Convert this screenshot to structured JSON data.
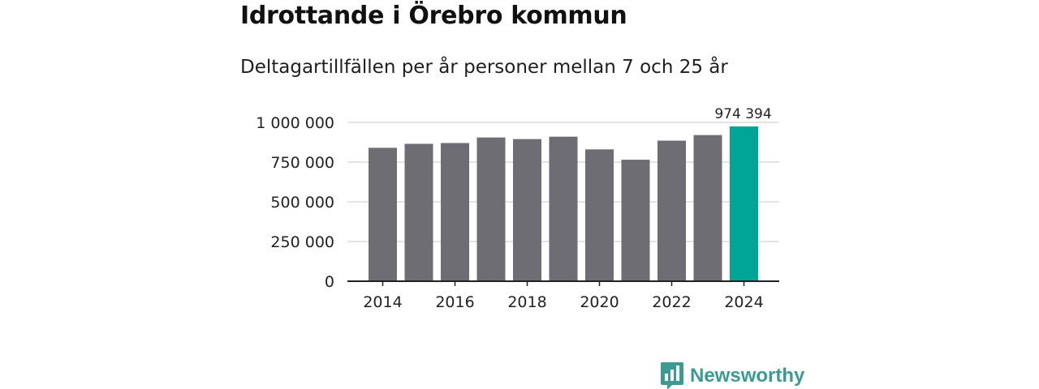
{
  "chart_data": {
    "type": "bar",
    "title": "Idrottande i Örebro kommun",
    "subtitle": "Deltagartillfällen per år personer mellan 7 och 25 år",
    "xlabel": "",
    "ylabel": "",
    "ylim": [
      0,
      1000000
    ],
    "yticks": [
      {
        "value": 0,
        "label": "0"
      },
      {
        "value": 250000,
        "label": "250 000"
      },
      {
        "value": 500000,
        "label": "500 000"
      },
      {
        "value": 750000,
        "label": "750 000"
      },
      {
        "value": 1000000,
        "label": "1 000 000"
      }
    ],
    "categories": [
      "2014",
      "2015",
      "2016",
      "2017",
      "2018",
      "2019",
      "2020",
      "2021",
      "2022",
      "2023",
      "2024"
    ],
    "xtick_labels": [
      "2014",
      "2016",
      "2018",
      "2020",
      "2022",
      "2024"
    ],
    "values": [
      840000,
      865000,
      870000,
      905000,
      895000,
      910000,
      830000,
      765000,
      885000,
      920000,
      974394
    ],
    "highlight_index": 10,
    "highlight_label": "974 394",
    "grid": true,
    "colors": {
      "bar": "#6e6d73",
      "highlight": "#00a597",
      "grid": "#dcdcdc",
      "axis": "#222222",
      "text": "#222222"
    }
  },
  "brand": {
    "name": "Newsworthy",
    "icon": "newsworthy-logo-icon",
    "color": "#3b9b92"
  }
}
